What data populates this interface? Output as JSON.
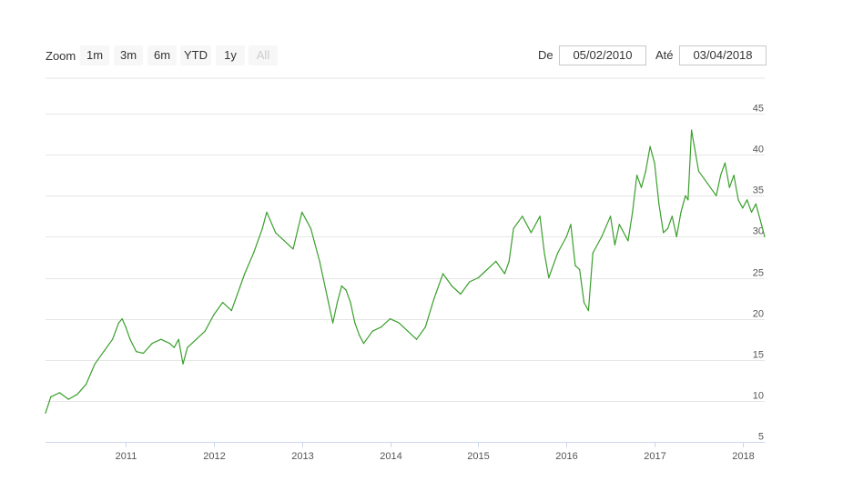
{
  "toolbar": {
    "zoom_label": "Zoom",
    "zoom_buttons": [
      "1m",
      "3m",
      "6m",
      "YTD",
      "1y",
      "All"
    ],
    "from_label": "De",
    "from_value": "05/02/2010",
    "to_label": "Até",
    "to_value": "03/04/2018"
  },
  "chart_data": {
    "type": "line",
    "line_color": "#3a9f2c",
    "grid": true,
    "xlim": [
      2010.09,
      2018.25
    ],
    "ylim": [
      5,
      45
    ],
    "x_ticks": [
      2011,
      2012,
      2013,
      2014,
      2015,
      2016,
      2017,
      2018
    ],
    "x_tick_labels": [
      "2011",
      "2012",
      "2013",
      "2014",
      "2015",
      "2016",
      "2017",
      "2018"
    ],
    "y_ticks": [
      5,
      10,
      15,
      20,
      25,
      30,
      35,
      40,
      45
    ],
    "y_tick_labels": [
      "5",
      "10",
      "15",
      "20",
      "25",
      "30",
      "35",
      "40",
      "45"
    ],
    "series": [
      {
        "x": [
          2010.09,
          2010.15,
          2010.25,
          2010.35,
          2010.45,
          2010.55,
          2010.65,
          2010.75,
          2010.85,
          2010.92,
          2010.96,
          2011.0,
          2011.05,
          2011.12,
          2011.2,
          2011.3,
          2011.4,
          2011.5,
          2011.55,
          2011.6,
          2011.65,
          2011.7,
          2011.8,
          2011.9,
          2012.0,
          2012.1,
          2012.2,
          2012.3,
          2012.35,
          2012.45,
          2012.55,
          2012.6,
          2012.7,
          2012.8,
          2012.9,
          2013.0,
          2013.1,
          2013.2,
          2013.3,
          2013.35,
          2013.4,
          2013.45,
          2013.5,
          2013.55,
          2013.6,
          2013.65,
          2013.7,
          2013.8,
          2013.9,
          2014.0,
          2014.1,
          2014.2,
          2014.3,
          2014.4,
          2014.5,
          2014.6,
          2014.7,
          2014.8,
          2014.9,
          2015.0,
          2015.1,
          2015.2,
          2015.3,
          2015.35,
          2015.4,
          2015.5,
          2015.6,
          2015.7,
          2015.75,
          2015.8,
          2015.9,
          2016.0,
          2016.05,
          2016.1,
          2016.15,
          2016.2,
          2016.25,
          2016.3,
          2016.4,
          2016.5,
          2016.55,
          2016.6,
          2016.7,
          2016.75,
          2016.8,
          2016.85,
          2016.9,
          2016.95,
          2017.0,
          2017.05,
          2017.1,
          2017.15,
          2017.2,
          2017.25,
          2017.3,
          2017.35,
          2017.38,
          2017.42,
          2017.5,
          2017.6,
          2017.7,
          2017.75,
          2017.8,
          2017.85,
          2017.9,
          2017.95,
          2018.0,
          2018.05,
          2018.1,
          2018.15,
          2018.2,
          2018.25
        ],
        "y": [
          8.5,
          10.5,
          11.0,
          10.2,
          10.8,
          12.0,
          14.5,
          16.0,
          17.5,
          19.5,
          20.0,
          19.0,
          17.5,
          16.0,
          15.8,
          17.0,
          17.5,
          17.0,
          16.5,
          17.5,
          14.5,
          16.5,
          17.5,
          18.5,
          20.5,
          22.0,
          21.0,
          24.0,
          25.5,
          28.0,
          31.0,
          33.0,
          30.5,
          29.5,
          28.5,
          33.0,
          31.0,
          27.0,
          22.0,
          19.5,
          22.0,
          24.0,
          23.5,
          22.0,
          19.5,
          18.0,
          17.0,
          18.5,
          19.0,
          20.0,
          19.5,
          18.5,
          17.5,
          19.0,
          22.5,
          25.5,
          24.0,
          23.0,
          24.5,
          25.0,
          26.0,
          27.0,
          25.5,
          27.0,
          31.0,
          32.5,
          30.5,
          32.5,
          28.0,
          25.0,
          28.0,
          30.0,
          31.5,
          26.5,
          26.0,
          22.0,
          21.0,
          28.0,
          30.0,
          32.5,
          29.0,
          31.5,
          29.5,
          33.0,
          37.5,
          36.0,
          38.0,
          41.0,
          39.0,
          34.0,
          30.5,
          31.0,
          32.5,
          30.0,
          33.0,
          35.0,
          34.5,
          43.0,
          38.0,
          36.5,
          35.0,
          37.5,
          39.0,
          36.0,
          37.5,
          34.5,
          33.5,
          34.5,
          33.0,
          34.0,
          32.0,
          30.0
        ]
      }
    ]
  }
}
